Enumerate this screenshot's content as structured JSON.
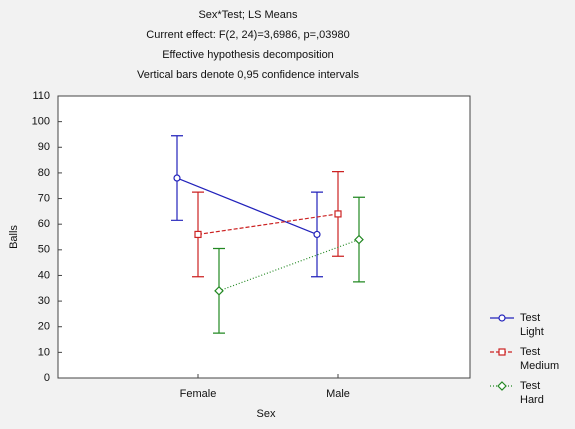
{
  "chart_data": {
    "type": "line",
    "title": "Sex*Test; LS Means",
    "subtitles": [
      "Current effect: F(2, 24)=3,6986, p=,03980",
      "Effective hypothesis decomposition",
      "Vertical bars denote 0,95 confidence intervals"
    ],
    "x_label": "Sex",
    "y_label": "Balls",
    "categories": [
      "Female",
      "Male"
    ],
    "legend_prefix": "Test",
    "series": [
      {
        "name": "Light",
        "color": "#2222bb",
        "marker": "circle",
        "line_style": "solid",
        "values": [
          78,
          56
        ],
        "errors": [
          16.5,
          16.5
        ]
      },
      {
        "name": "Medium",
        "color": "#cc2222",
        "marker": "square",
        "line_style": "dashed",
        "values": [
          56,
          64
        ],
        "errors": [
          16.5,
          16.5
        ]
      },
      {
        "name": "Hard",
        "color": "#228822",
        "marker": "diamond",
        "line_style": "dotted",
        "values": [
          34,
          54
        ],
        "errors": [
          16.5,
          16.5
        ]
      }
    ],
    "ylim": [
      0,
      110
    ],
    "yticks": [
      0,
      10,
      20,
      30,
      40,
      50,
      60,
      70,
      80,
      90,
      100,
      110
    ],
    "grid": false,
    "legend": "right"
  }
}
